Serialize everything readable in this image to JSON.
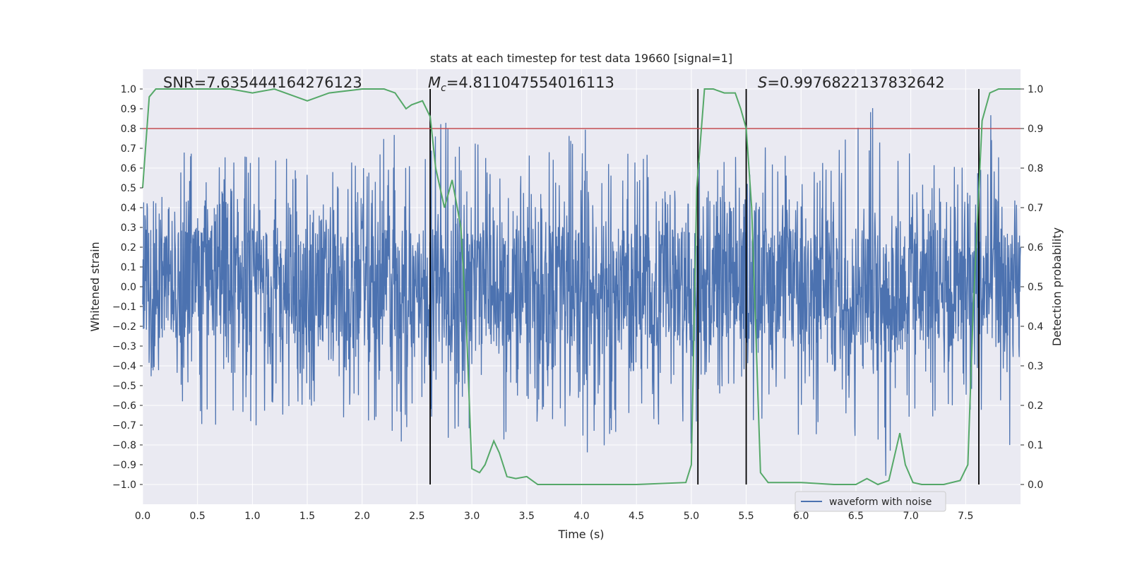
{
  "chart_data": {
    "type": "line",
    "title": "stats at each timestep for test data 19660 [signal=1]",
    "xlabel": "Time (s)",
    "ylabel": "Whitened strain",
    "y2label": "Detection probability",
    "xlim": [
      0.0,
      8.0
    ],
    "ylim": [
      -1.1,
      1.1
    ],
    "y2lim": [
      -0.05,
      1.05
    ],
    "x_ticks": [
      "0.0",
      "0.5",
      "1.0",
      "1.5",
      "2.0",
      "2.5",
      "3.0",
      "3.5",
      "4.0",
      "4.5",
      "5.0",
      "5.5",
      "6.0",
      "6.5",
      "7.0",
      "7.5"
    ],
    "y_ticks": [
      "1.0",
      "0.9",
      "0.8",
      "0.7",
      "0.6",
      "0.5",
      "0.4",
      "0.3",
      "0.2",
      "0.1",
      "0.0",
      "-0.1",
      "-0.2",
      "-0.3",
      "-0.4",
      "-0.5",
      "-0.6",
      "-0.7",
      "-0.8",
      "-0.9",
      "-1.0"
    ],
    "y2_ticks": [
      "1.0",
      "0.9",
      "0.8",
      "0.7",
      "0.6",
      "0.5",
      "0.4",
      "0.3",
      "0.2",
      "0.1",
      "0.0"
    ],
    "annotations": {
      "snr": "SNR=7.635444164276123",
      "mc_symbol": "M",
      "mc_sub": "c",
      "mc_value": "=4.811047554016113",
      "s_symbol": "S",
      "s_value": "=0.9976822137832642"
    },
    "threshold": 0.9,
    "vlines": [
      2.62,
      5.06,
      5.5,
      7.62
    ],
    "legend": "waveform with noise",
    "series": [
      {
        "name": "waveform with noise",
        "axis": "left",
        "color": "#4c72b0",
        "envelope_points": [
          [
            0.0,
            0.35
          ],
          [
            0.05,
            0.5
          ],
          [
            0.1,
            0.45
          ],
          [
            0.2,
            0.6
          ],
          [
            0.3,
            0.55
          ],
          [
            0.37,
            0.86
          ],
          [
            0.5,
            0.65
          ],
          [
            0.6,
            0.78
          ],
          [
            0.75,
            0.7
          ],
          [
            0.9,
            0.65
          ],
          [
            1.0,
            0.7
          ],
          [
            1.13,
            0.88
          ],
          [
            1.2,
            0.68
          ],
          [
            1.4,
            0.65
          ],
          [
            1.6,
            0.6
          ],
          [
            1.8,
            0.65
          ],
          [
            1.9,
            0.75
          ],
          [
            2.0,
            0.65
          ],
          [
            2.2,
            0.75
          ],
          [
            2.35,
            0.8
          ],
          [
            2.5,
            0.87
          ],
          [
            2.6,
            0.7
          ],
          [
            2.72,
            0.92
          ],
          [
            2.8,
            0.8
          ],
          [
            3.0,
            0.72
          ],
          [
            3.2,
            0.88
          ],
          [
            3.4,
            0.7
          ],
          [
            3.6,
            0.7
          ],
          [
            3.8,
            0.75
          ],
          [
            3.95,
            0.85
          ],
          [
            4.2,
            0.82
          ],
          [
            4.5,
            0.65
          ],
          [
            4.8,
            0.72
          ],
          [
            5.0,
            0.8
          ],
          [
            5.2,
            0.6
          ],
          [
            5.4,
            0.68
          ],
          [
            5.6,
            0.7
          ],
          [
            5.8,
            0.78
          ],
          [
            6.0,
            0.75
          ],
          [
            6.27,
            0.82
          ],
          [
            6.5,
            0.85
          ],
          [
            6.8,
            0.98
          ],
          [
            7.0,
            0.76
          ],
          [
            7.2,
            0.68
          ],
          [
            7.4,
            0.75
          ],
          [
            7.6,
            0.72
          ],
          [
            7.72,
            0.92
          ],
          [
            7.8,
            0.7
          ],
          [
            7.92,
            0.9
          ],
          [
            8.0,
            0.5
          ]
        ]
      },
      {
        "name": "detection probability",
        "axis": "right",
        "color": "#55a868",
        "x": [
          0.0,
          0.06,
          0.12,
          0.5,
          0.8,
          1.0,
          1.2,
          1.5,
          1.7,
          2.0,
          2.2,
          2.3,
          2.4,
          2.45,
          2.55,
          2.62,
          2.67,
          2.75,
          2.82,
          2.9,
          2.95,
          3.0,
          3.07,
          3.12,
          3.2,
          3.25,
          3.32,
          3.4,
          3.5,
          3.6,
          4.0,
          4.5,
          4.95,
          5.0,
          5.05,
          5.12,
          5.2,
          5.3,
          5.4,
          5.45,
          5.5,
          5.55,
          5.63,
          5.7,
          6.0,
          6.3,
          6.5,
          6.6,
          6.7,
          6.8,
          6.9,
          6.95,
          7.02,
          7.1,
          7.3,
          7.45,
          7.52,
          7.57,
          7.65,
          7.72,
          7.8,
          7.9,
          8.0
        ],
        "y": [
          0.75,
          0.98,
          1.0,
          1.0,
          1.0,
          0.99,
          1.0,
          0.97,
          0.99,
          1.0,
          1.0,
          0.99,
          0.95,
          0.96,
          0.97,
          0.93,
          0.8,
          0.7,
          0.77,
          0.65,
          0.4,
          0.04,
          0.03,
          0.05,
          0.11,
          0.08,
          0.02,
          0.015,
          0.02,
          0.0,
          0.0,
          0.0,
          0.005,
          0.05,
          0.75,
          1.0,
          1.0,
          0.99,
          0.99,
          0.95,
          0.9,
          0.7,
          0.03,
          0.005,
          0.005,
          0.0,
          0.0,
          0.015,
          0.0,
          0.01,
          0.13,
          0.05,
          0.005,
          0.0,
          0.0,
          0.01,
          0.05,
          0.45,
          0.92,
          0.99,
          1.0,
          1.0,
          1.0
        ]
      }
    ]
  }
}
